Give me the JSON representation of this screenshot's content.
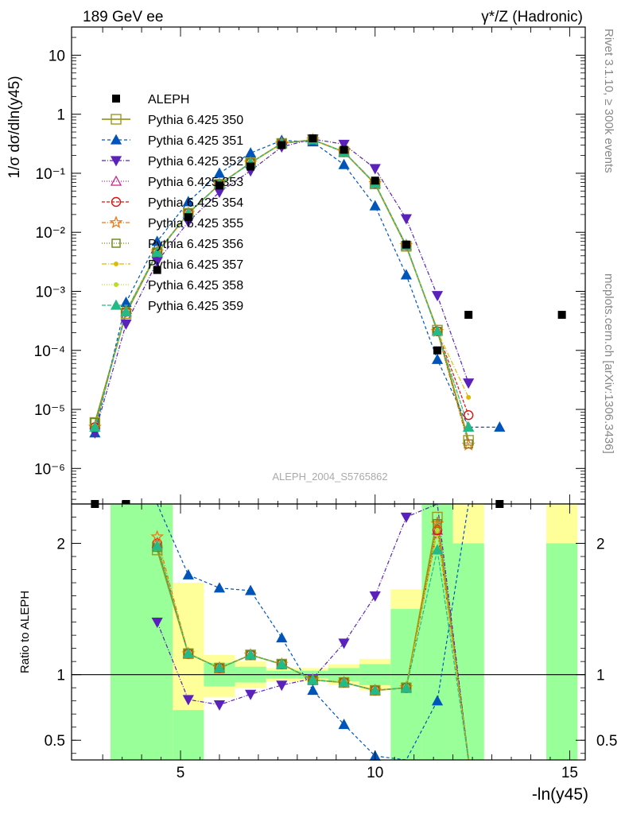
{
  "chart_data": [
    {
      "type": "line",
      "panel": "main",
      "title_left": "189 GeV ee",
      "title_right": "γ*/Z (Hadronic)",
      "ylabel": "1/σ dσ/dln(y45)",
      "y_scale": "log",
      "ylim": [
        2.5e-07,
        30
      ],
      "xlim": [
        2.2,
        15.4
      ],
      "y_tick_labels": [
        "10",
        "1",
        "10⁻¹",
        "10⁻²",
        "10⁻³",
        "10⁻⁴",
        "10⁻⁵",
        "10⁻⁶"
      ],
      "y_tick_values": [
        10,
        1,
        0.1,
        0.01,
        0.001,
        0.0001,
        1e-05,
        1e-06
      ],
      "x": [
        2.8,
        3.6,
        4.4,
        5.2,
        6.0,
        6.8,
        7.6,
        8.4,
        9.2,
        10.0,
        10.8,
        11.6,
        12.4,
        13.2,
        14.8
      ],
      "aleph": {
        "name": "ALEPH",
        "x": [
          2.8,
          3.6,
          4.4,
          5.2,
          6.0,
          6.8,
          7.6,
          8.4,
          9.2,
          10.0,
          10.8,
          11.6,
          12.4,
          13.2,
          14.8
        ],
        "y": [
          2.5e-07,
          2.5e-07,
          0.0023,
          0.018,
          0.062,
          0.13,
          0.3,
          0.39,
          0.25,
          0.075,
          0.0062,
          0.0001,
          0.0004,
          2.5e-07,
          0.0004
        ]
      },
      "series": [
        {
          "name": "Pythia 6.425 350",
          "color": "#9a9a20",
          "dash": "",
          "marker": "square-open",
          "y": [
            6e-06,
            0.00042,
            0.0045,
            0.021,
            0.065,
            0.15,
            0.32,
            0.37,
            0.23,
            0.066,
            0.0058,
            0.00022,
            3e-06,
            null,
            null
          ]
        },
        {
          "name": "Pythia 6.425 351",
          "color": "#0055bb",
          "dash": "4,3",
          "marker": "triangle-up",
          "y": [
            4e-06,
            0.00065,
            0.007,
            0.033,
            0.1,
            0.22,
            0.36,
            0.34,
            0.14,
            0.028,
            0.0019,
            7e-05,
            5e-06,
            5e-06,
            null
          ]
        },
        {
          "name": "Pythia 6.425 352",
          "color": "#5a22bb",
          "dash": "5,2,1,2",
          "marker": "triangle-down",
          "y": [
            4e-06,
            0.00028,
            0.0032,
            0.015,
            0.048,
            0.11,
            0.28,
            0.38,
            0.31,
            0.12,
            0.017,
            0.00085,
            2.8e-05,
            null,
            null
          ]
        },
        {
          "name": "Pythia 6.425 353",
          "color": "#cc2288",
          "dash": "1,2",
          "marker": "triangle-up-open",
          "y": [
            5e-06,
            0.00045,
            0.0046,
            0.021,
            0.065,
            0.15,
            0.32,
            0.37,
            0.23,
            0.067,
            0.006,
            0.00021,
            5e-06,
            null,
            null
          ]
        },
        {
          "name": "Pythia 6.425 354",
          "color": "#dd1111",
          "dash": "4,2",
          "marker": "circle-open",
          "y": [
            5e-06,
            0.00045,
            0.0046,
            0.021,
            0.065,
            0.15,
            0.32,
            0.37,
            0.23,
            0.067,
            0.006,
            0.00021,
            8e-06,
            null,
            null
          ]
        },
        {
          "name": "Pythia 6.425 355",
          "color": "#ee7711",
          "dash": "5,2,1,2",
          "marker": "star-open",
          "y": [
            5e-06,
            0.00046,
            0.0047,
            0.021,
            0.065,
            0.15,
            0.32,
            0.37,
            0.23,
            0.067,
            0.006,
            0.00021,
            2.5e-06,
            null,
            null
          ]
        },
        {
          "name": "Pythia 6.425 356",
          "color": "#668811",
          "dash": "1,2",
          "marker": "square-open-small",
          "y": [
            6e-06,
            0.00045,
            0.0046,
            0.021,
            0.065,
            0.15,
            0.32,
            0.37,
            0.23,
            0.067,
            0.006,
            0.00021,
            2.6e-06,
            null,
            null
          ]
        },
        {
          "name": "Pythia 6.425 357",
          "color": "#ddbb00",
          "dash": "6,2,1,2",
          "marker": "dot",
          "y": [
            5e-06,
            0.00045,
            0.0046,
            0.021,
            0.065,
            0.15,
            0.32,
            0.37,
            0.23,
            0.067,
            0.006,
            0.00021,
            1.6e-05,
            null,
            null
          ]
        },
        {
          "name": "Pythia 6.425 358",
          "color": "#bbdd22",
          "dash": "1,2",
          "marker": "dot",
          "y": [
            5e-06,
            0.00045,
            0.0046,
            0.021,
            0.065,
            0.15,
            0.32,
            0.37,
            0.23,
            0.067,
            0.006,
            0.00021,
            5e-06,
            null,
            null
          ]
        },
        {
          "name": "Pythia 6.425 359",
          "color": "#22bb88",
          "dash": "5,2",
          "marker": "triangle-up",
          "y": [
            5e-06,
            0.00045,
            0.0046,
            0.021,
            0.065,
            0.15,
            0.32,
            0.37,
            0.23,
            0.067,
            0.006,
            0.00021,
            5e-06,
            null,
            null
          ]
        }
      ],
      "watermark": "ALEPH_2004_S5765862",
      "side_text_top": "Rivet 3.1.10, ≥ 300k events",
      "side_text_bottom": "mcplots.cern.ch [arXiv:1306.3436]",
      "legend_placement": "top-left"
    },
    {
      "type": "line",
      "panel": "ratio",
      "ylabel": "Ratio to ALEPH",
      "xlabel": "-ln(y45)",
      "ylim": [
        0.35,
        2.3
      ],
      "xlim": [
        2.2,
        15.4
      ],
      "x_tick_labels": [
        "5",
        "10",
        "15"
      ],
      "x_tick_values": [
        5,
        10,
        15
      ],
      "y_tick_labels": [
        "2",
        "1",
        "0.5"
      ],
      "y_tick_values": [
        2,
        1,
        0.5
      ],
      "bands": [
        {
          "x_from": 3.2,
          "x_to": 4.8,
          "yellow": [
            0.35,
            2.3
          ],
          "green": [
            0.35,
            2.3
          ]
        },
        {
          "x_from": 4.8,
          "x_to": 5.6,
          "yellow": [
            0.35,
            1.7
          ],
          "green": [
            0.35,
            0.73
          ]
        },
        {
          "x_from": 5.6,
          "x_to": 6.4,
          "yellow": [
            0.83,
            1.15
          ],
          "green": [
            0.91,
            1.09
          ]
        },
        {
          "x_from": 6.4,
          "x_to": 7.2,
          "yellow": [
            0.9,
            1.1
          ],
          "green": [
            0.94,
            1.06
          ]
        },
        {
          "x_from": 7.2,
          "x_to": 8.0,
          "yellow": [
            0.95,
            1.05
          ],
          "green": [
            0.97,
            1.03
          ]
        },
        {
          "x_from": 8.0,
          "x_to": 8.8,
          "yellow": [
            0.95,
            1.05
          ],
          "green": [
            0.97,
            1.03
          ]
        },
        {
          "x_from": 8.8,
          "x_to": 9.6,
          "yellow": [
            0.92,
            1.08
          ],
          "green": [
            0.95,
            1.05
          ]
        },
        {
          "x_from": 9.6,
          "x_to": 10.4,
          "yellow": [
            0.88,
            1.12
          ],
          "green": [
            0.92,
            1.08
          ]
        },
        {
          "x_from": 10.4,
          "x_to": 11.2,
          "yellow": [
            0.4,
            1.65
          ],
          "green": [
            0.35,
            1.5
          ]
        },
        {
          "x_from": 11.2,
          "x_to": 12.0,
          "yellow": [
            0.35,
            2.3
          ],
          "green": [
            0.35,
            2.3
          ]
        },
        {
          "x_from": 12.0,
          "x_to": 12.8,
          "yellow": [
            0.35,
            2.3
          ],
          "green": [
            0.35,
            2.0
          ]
        },
        {
          "x_from": 14.4,
          "x_to": 15.2,
          "yellow": [
            0.35,
            2.3
          ],
          "green": [
            0.35,
            2.0
          ]
        }
      ],
      "series": [
        {
          "name": "Pythia 6.425 350",
          "y": [
            null,
            null,
            1.95,
            1.16,
            1.05,
            1.15,
            1.08,
            0.96,
            0.94,
            0.88,
            0.9,
            2.2,
            0.3,
            null,
            null
          ]
        },
        {
          "name": "Pythia 6.425 351",
          "y": [
            null,
            null,
            3.0,
            1.76,
            1.66,
            1.64,
            1.28,
            0.88,
            0.62,
            0.38,
            0.3,
            0.8,
            2.5,
            null,
            null
          ]
        },
        {
          "name": "Pythia 6.425 352",
          "y": [
            null,
            null,
            1.4,
            0.81,
            0.77,
            0.85,
            0.92,
            0.97,
            1.24,
            1.6,
            2.2,
            2.4,
            0.3,
            null,
            null
          ]
        },
        {
          "name": "Pythia 6.425 353",
          "y": [
            null,
            null,
            2.0,
            1.16,
            1.05,
            1.15,
            1.08,
            0.96,
            0.94,
            0.88,
            0.9,
            2.1,
            0.3,
            null,
            null
          ]
        },
        {
          "name": "Pythia 6.425 354",
          "y": [
            null,
            null,
            2.0,
            1.16,
            1.05,
            1.15,
            1.08,
            0.96,
            0.94,
            0.88,
            0.9,
            2.1,
            0.3,
            null,
            null
          ]
        },
        {
          "name": "Pythia 6.425 355",
          "y": [
            null,
            null,
            2.05,
            1.16,
            1.05,
            1.15,
            1.08,
            0.96,
            0.94,
            0.88,
            0.9,
            2.15,
            0.3,
            null,
            null
          ]
        },
        {
          "name": "Pythia 6.425 356",
          "y": [
            null,
            null,
            1.97,
            1.16,
            1.05,
            1.15,
            1.08,
            0.96,
            0.94,
            0.88,
            0.9,
            2.15,
            0.3,
            null,
            null
          ]
        },
        {
          "name": "Pythia 6.425 357",
          "y": [
            null,
            null,
            2.0,
            1.16,
            1.05,
            1.15,
            1.08,
            0.96,
            0.94,
            0.88,
            0.9,
            2.1,
            0.3,
            null,
            null
          ]
        },
        {
          "name": "Pythia 6.425 358",
          "y": [
            null,
            null,
            2.0,
            1.16,
            1.05,
            1.15,
            1.08,
            0.96,
            0.94,
            0.88,
            0.9,
            2.1,
            0.3,
            null,
            null
          ]
        },
        {
          "name": "Pythia 6.425 359",
          "y": [
            null,
            null,
            1.98,
            1.16,
            1.05,
            1.15,
            1.08,
            0.96,
            0.94,
            0.88,
            0.9,
            1.95,
            0.3,
            null,
            null
          ]
        }
      ]
    }
  ]
}
